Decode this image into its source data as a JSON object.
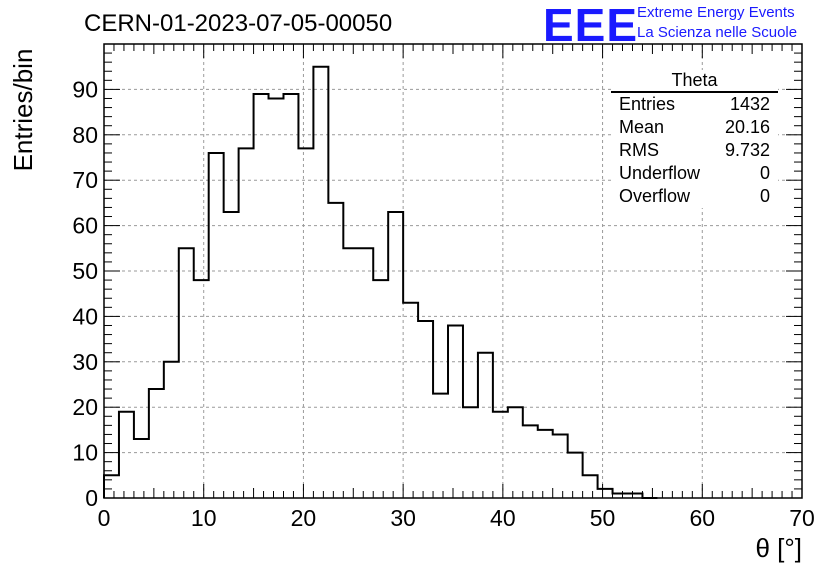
{
  "header": {
    "title": "CERN-01-2023-07-05-00050",
    "logo_text": "EEE",
    "logo_line1": "Extreme Energy Events",
    "logo_line2": "La Scienza nelle Scuole"
  },
  "stats_box": {
    "title": "Theta",
    "rows": [
      {
        "label": "Entries",
        "value": "1432"
      },
      {
        "label": "Mean",
        "value": "20.16"
      },
      {
        "label": "RMS",
        "value": "9.732"
      },
      {
        "label": "Underflow",
        "value": "0"
      },
      {
        "label": "Overflow",
        "value": "0"
      }
    ]
  },
  "colors": {
    "logo": "#1a1aff",
    "line": "#000000",
    "grid": "#9a9a9a"
  },
  "chart_data": {
    "type": "bar",
    "histogram": true,
    "xlabel": "θ [°]",
    "ylabel": "Entries/bin",
    "xlim": [
      0,
      70
    ],
    "ylim": [
      0,
      100
    ],
    "grid": true,
    "x_ticks": [
      0,
      10,
      20,
      30,
      40,
      50,
      60,
      70
    ],
    "y_ticks": [
      0,
      10,
      20,
      30,
      40,
      50,
      60,
      70,
      80,
      90
    ],
    "bin_width": 1.5,
    "bin_edges_start": 0,
    "values": [
      5,
      19,
      13,
      24,
      30,
      55,
      48,
      76,
      63,
      77,
      89,
      88,
      89,
      77,
      95,
      65,
      55,
      55,
      48,
      63,
      43,
      39,
      23,
      38,
      20,
      32,
      19,
      20,
      16,
      15,
      14,
      10,
      5,
      2,
      1,
      1,
      0
    ]
  }
}
